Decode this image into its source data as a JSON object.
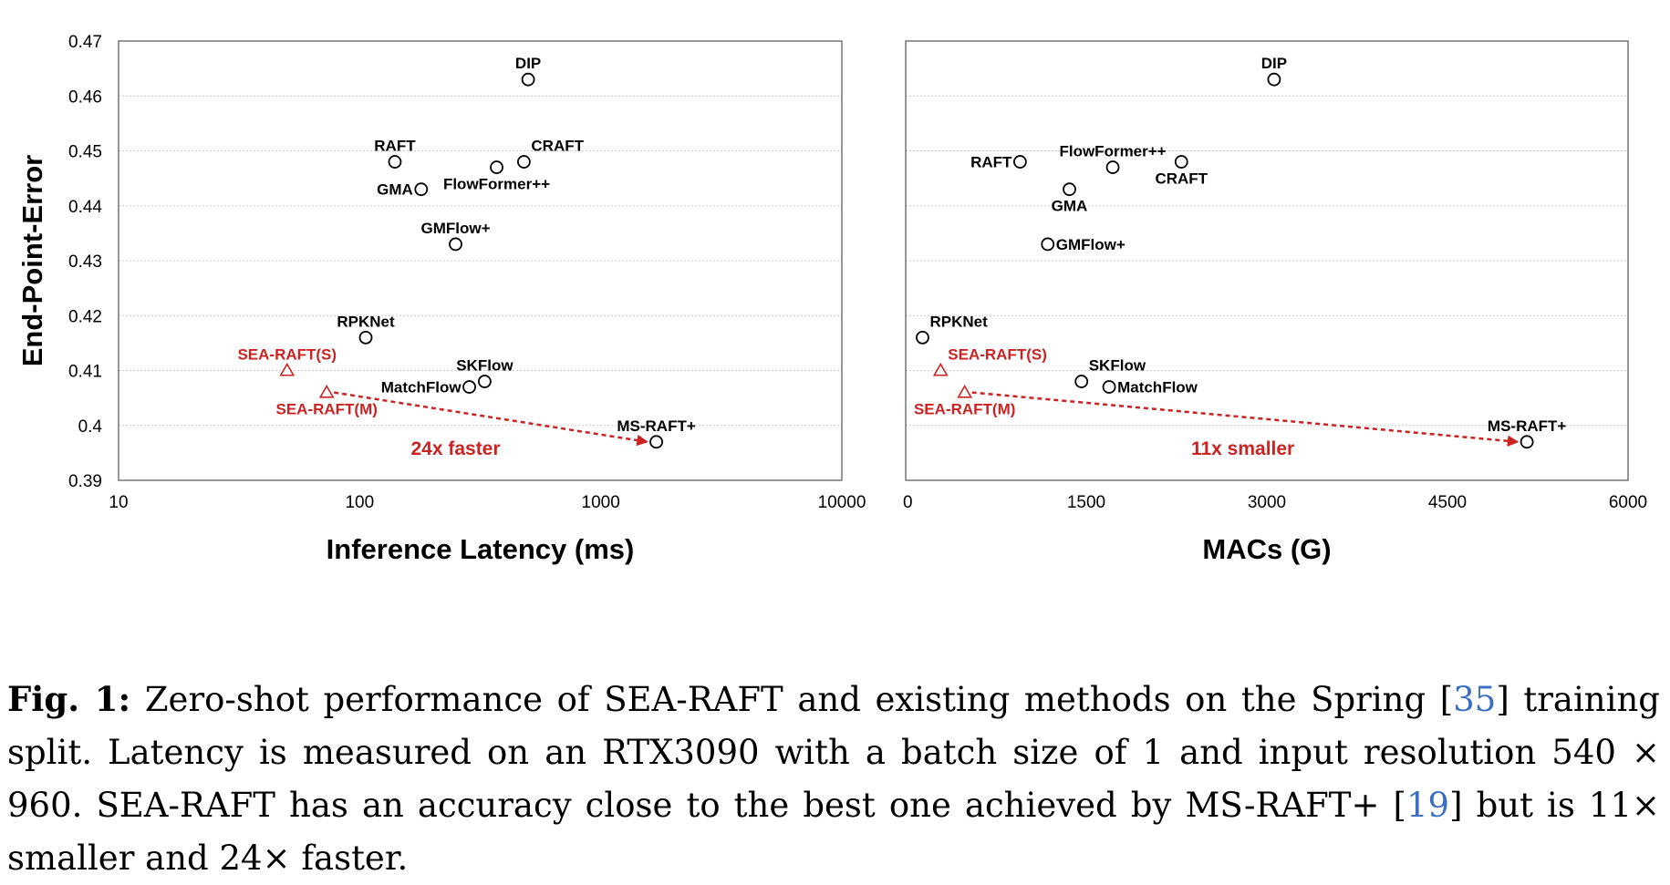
{
  "chart_data": [
    {
      "type": "scatter",
      "xscale": "log",
      "xlim": [
        10,
        10000
      ],
      "ylim": [
        0.39,
        0.47
      ],
      "xticks": [
        10,
        100,
        1000,
        10000
      ],
      "xtick_labels": [
        "10",
        "100",
        "1000",
        "10000"
      ],
      "yticks": [
        0.39,
        0.4,
        0.41,
        0.42,
        0.43,
        0.44,
        0.45,
        0.46,
        0.47
      ],
      "ytick_labels": [
        "0.39",
        "0.4",
        "0.41",
        "0.42",
        "0.43",
        "0.44",
        "0.45",
        "0.46",
        "0.47"
      ],
      "xlabel": "Inference Latency (ms)",
      "ylabel": "End-Point-Error",
      "grid": true,
      "points": [
        {
          "label": "DIP",
          "x": 500,
          "y": 0.463,
          "marker": "circle",
          "color": "#000000",
          "anchor": "top"
        },
        {
          "label": "RAFT",
          "x": 140,
          "y": 0.448,
          "marker": "circle",
          "color": "#000000",
          "anchor": "top"
        },
        {
          "label": "CRAFT",
          "x": 480,
          "y": 0.448,
          "marker": "circle",
          "color": "#000000",
          "anchor": "top-right"
        },
        {
          "label": "FlowFormer++",
          "x": 370,
          "y": 0.447,
          "marker": "circle",
          "color": "#000000",
          "anchor": "below"
        },
        {
          "label": "GMA",
          "x": 180,
          "y": 0.443,
          "marker": "circle",
          "color": "#000000",
          "anchor": "left"
        },
        {
          "label": "GMFlow+",
          "x": 250,
          "y": 0.433,
          "marker": "circle",
          "color": "#000000",
          "anchor": "top"
        },
        {
          "label": "RPKNet",
          "x": 106,
          "y": 0.416,
          "marker": "circle",
          "color": "#000000",
          "anchor": "top"
        },
        {
          "label": "SKFlow",
          "x": 330,
          "y": 0.408,
          "marker": "circle",
          "color": "#000000",
          "anchor": "top"
        },
        {
          "label": "MatchFlow",
          "x": 285,
          "y": 0.407,
          "marker": "circle",
          "color": "#000000",
          "anchor": "left"
        },
        {
          "label": "MS-RAFT+",
          "x": 1700,
          "y": 0.397,
          "marker": "circle",
          "color": "#000000",
          "anchor": "top"
        },
        {
          "label": "SEA-RAFT(S)",
          "x": 50,
          "y": 0.41,
          "marker": "triangle",
          "color": "#cc2222",
          "anchor": "top"
        },
        {
          "label": "SEA-RAFT(M)",
          "x": 73,
          "y": 0.406,
          "marker": "triangle",
          "color": "#cc2222",
          "anchor": "below"
        }
      ],
      "arrow": {
        "from_label": "SEA-RAFT(M)",
        "to_label": "MS-RAFT+",
        "color": "#cc2222"
      },
      "annotation": "24x faster",
      "annotation_pos": {
        "x": 250,
        "y": 0.398
      }
    },
    {
      "type": "scatter",
      "xscale": "linear",
      "xlim": [
        0,
        6000
      ],
      "ylim": [
        0.39,
        0.47
      ],
      "xticks": [
        0,
        1500,
        3000,
        4500,
        6000
      ],
      "xtick_labels": [
        "0",
        "1500",
        "3000",
        "4500",
        "6000"
      ],
      "yticks": [
        0.39,
        0.4,
        0.41,
        0.42,
        0.43,
        0.44,
        0.45,
        0.46,
        0.47
      ],
      "xlabel": "MACs (G)",
      "grid": true,
      "points": [
        {
          "label": "DIP",
          "x": 3060,
          "y": 0.463,
          "marker": "circle",
          "color": "#000000",
          "anchor": "top"
        },
        {
          "label": "RAFT",
          "x": 950,
          "y": 0.448,
          "marker": "circle",
          "color": "#000000",
          "anchor": "left"
        },
        {
          "label": "FlowFormer++",
          "x": 1720,
          "y": 0.447,
          "marker": "circle",
          "color": "#000000",
          "anchor": "top"
        },
        {
          "label": "CRAFT",
          "x": 2290,
          "y": 0.448,
          "marker": "circle",
          "color": "#000000",
          "anchor": "below"
        },
        {
          "label": "GMA",
          "x": 1360,
          "y": 0.443,
          "marker": "circle",
          "color": "#000000",
          "anchor": "below"
        },
        {
          "label": "GMFlow+",
          "x": 1180,
          "y": 0.433,
          "marker": "circle",
          "color": "#000000",
          "anchor": "right"
        },
        {
          "label": "RPKNet",
          "x": 140,
          "y": 0.416,
          "marker": "circle",
          "color": "#000000",
          "anchor": "top-right"
        },
        {
          "label": "SKFlow",
          "x": 1460,
          "y": 0.408,
          "marker": "circle",
          "color": "#000000",
          "anchor": "top-right"
        },
        {
          "label": "MatchFlow",
          "x": 1690,
          "y": 0.407,
          "marker": "circle",
          "color": "#000000",
          "anchor": "right"
        },
        {
          "label": "MS-RAFT+",
          "x": 5160,
          "y": 0.397,
          "marker": "circle",
          "color": "#000000",
          "anchor": "top"
        },
        {
          "label": "SEA-RAFT(S)",
          "x": 290,
          "y": 0.41,
          "marker": "triangle",
          "color": "#cc2222",
          "anchor": "top-right"
        },
        {
          "label": "SEA-RAFT(M)",
          "x": 490,
          "y": 0.406,
          "marker": "triangle",
          "color": "#cc2222",
          "anchor": "below"
        }
      ],
      "arrow": {
        "from_label": "SEA-RAFT(M)",
        "to_label": "MS-RAFT+",
        "color": "#cc2222"
      },
      "annotation": "11x smaller",
      "annotation_pos": {
        "x": 2800,
        "y": 0.398
      }
    }
  ],
  "caption": {
    "lead": "Fig. 1:",
    "text_1": " Zero-shot performance of SEA-RAFT and existing methods on the Spring [",
    "ref_1": "35",
    "text_2": "] training split. Latency is measured on an RTX3090 with a batch size of 1 and input resolution 540 × 960. SEA-RAFT has an accuracy close to the best one achieved by MS-RAFT+ [",
    "ref_2": "19",
    "text_3": "] but is 11× smaller and 24× faster."
  },
  "colors": {
    "highlight": "#cc2222",
    "grid": "#c8c8c8",
    "link": "#3a6fc2"
  }
}
